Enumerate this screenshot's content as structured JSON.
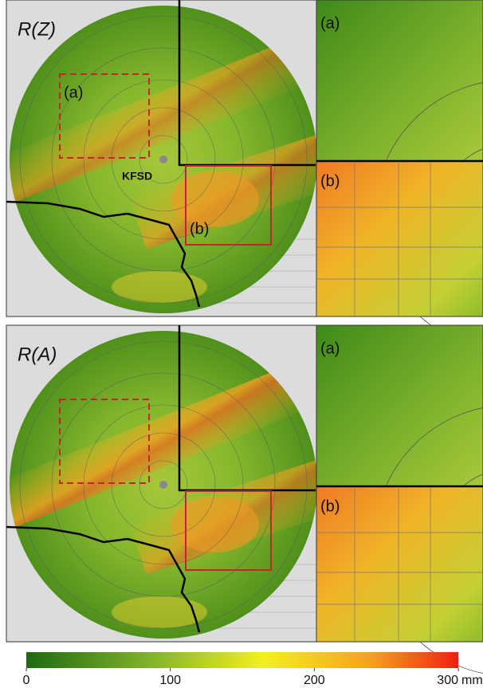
{
  "panels": [
    {
      "title": "R(Z)",
      "station": "KFSD",
      "box_a": "(a)",
      "box_b": "(b)",
      "inset_a": "(a)",
      "inset_b": "(b)"
    },
    {
      "title": "R(A)",
      "inset_a": "(a)",
      "inset_b": "(b)"
    }
  ],
  "colorbar": {
    "lim": [
      0,
      300
    ],
    "ticks": [
      0,
      100,
      200,
      300
    ],
    "unit": "mm"
  }
}
